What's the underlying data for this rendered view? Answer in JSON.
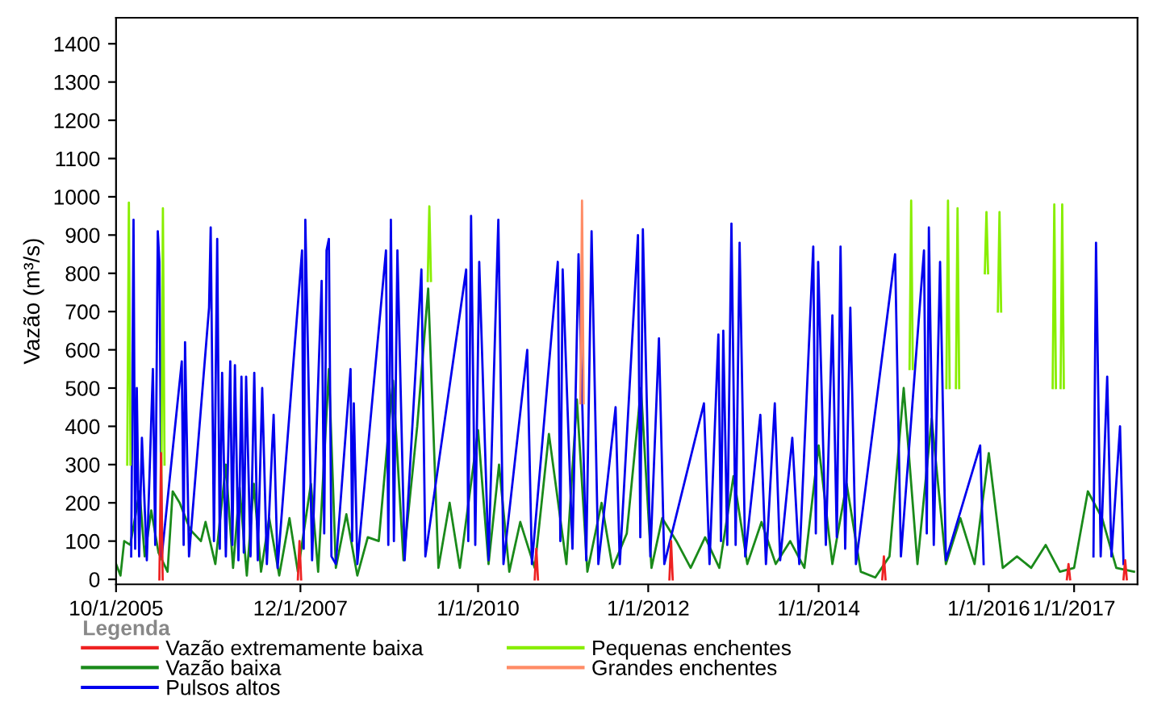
{
  "chart_data": {
    "type": "line",
    "ylabel": "Vazão (m³/s)",
    "legend_title": "Legenda",
    "legend": "bottom",
    "grid": false,
    "marker": "none",
    "line_style": "solid",
    "xlim": [
      "2005-10-01",
      "2017-09-30"
    ],
    "xticks": [
      {
        "value": "2005-10-01",
        "label": "10/1/2005"
      },
      {
        "value": "2007-12-01",
        "label": "12/1/2007"
      },
      {
        "value": "2010-01-01",
        "label": "1/1/2010"
      },
      {
        "value": "2012-01-01",
        "label": "1/1/2012"
      },
      {
        "value": "2014-01-01",
        "label": "1/1/2014"
      },
      {
        "value": "2016-01-01",
        "label": "1/1/2016"
      },
      {
        "value": "2017-01-01",
        "label": "1/1/2017"
      }
    ],
    "ylim": [
      -13,
      1468
    ],
    "yticks": [
      0,
      100,
      200,
      300,
      400,
      500,
      600,
      700,
      800,
      900,
      1000,
      1100,
      1200,
      1300,
      1400
    ],
    "series": [
      {
        "name": "Vazão extremamente baixa",
        "color": "#ee2222",
        "x": [
          "2006-04-05",
          "2006-04-12",
          "2006-04-19",
          null,
          "2007-11-20",
          "2007-11-27",
          "2007-12-04",
          null,
          "2010-09-01",
          "2010-09-08",
          "2010-09-15",
          null,
          "2012-04-01",
          "2012-04-08",
          "2012-04-15",
          null,
          "2014-10-01",
          "2014-10-08",
          "2014-10-15",
          null,
          "2016-12-01",
          "2016-12-08",
          "2016-12-15",
          null,
          "2017-08-01",
          "2017-08-08",
          "2017-08-15"
        ],
        "values": [
          0,
          330,
          0,
          null,
          0,
          100,
          0,
          null,
          0,
          80,
          0,
          null,
          0,
          100,
          0,
          null,
          0,
          60,
          0,
          null,
          0,
          40,
          0,
          null,
          0,
          50,
          0
        ]
      },
      {
        "name": "Vazão baixa",
        "color": "#1a8a1a",
        "x": [
          "2005-10-01",
          "2005-10-20",
          "2005-11-05",
          "2005-12-01",
          "2006-01-10",
          "2006-02-01",
          "2006-03-01",
          "2006-04-01",
          "2006-05-10",
          "2006-06-01",
          "2006-07-01",
          "2006-08-15",
          "2006-09-30",
          "2006-10-20",
          "2006-12-01",
          "2007-01-15",
          "2007-02-15",
          "2007-03-15",
          "2007-04-15",
          "2007-05-15",
          "2007-06-15",
          "2007-07-20",
          "2007-09-01",
          "2007-10-15",
          "2007-11-20",
          "2008-01-15",
          "2008-02-15",
          "2008-04-01",
          "2008-05-01",
          "2008-06-15",
          "2008-08-01",
          "2008-09-15",
          "2008-11-01",
          "2009-01-01",
          "2009-02-15",
          "2009-04-15",
          "2009-06-01",
          "2009-07-15",
          "2009-09-01",
          "2009-10-15",
          "2010-01-01",
          "2010-02-15",
          "2010-04-01",
          "2010-05-15",
          "2010-07-01",
          "2010-09-01",
          "2010-11-01",
          "2011-01-15",
          "2011-03-01",
          "2011-04-15",
          "2011-06-15",
          "2011-08-01",
          "2011-10-01",
          "2011-12-01",
          "2012-01-15",
          "2012-03-01",
          "2012-05-01",
          "2012-07-01",
          "2012-09-01",
          "2012-11-01",
          "2013-01-01",
          "2013-03-01",
          "2013-05-01",
          "2013-07-01",
          "2013-09-01",
          "2013-11-01",
          "2014-01-01",
          "2014-03-01",
          "2014-05-01",
          "2014-07-01",
          "2014-09-01",
          "2014-11-01",
          "2015-01-01",
          "2015-03-01",
          "2015-05-01",
          "2015-07-01",
          "2015-09-01",
          "2015-11-01",
          "2016-01-01",
          "2016-03-01",
          "2016-05-01",
          "2016-07-01",
          "2016-09-01",
          "2016-11-01",
          "2017-01-01",
          "2017-03-01",
          "2017-05-01",
          "2017-07-01",
          "2017-09-15"
        ],
        "values": [
          40,
          10,
          100,
          90,
          230,
          60,
          180,
          70,
          20,
          230,
          200,
          130,
          100,
          150,
          40,
          300,
          30,
          240,
          10,
          250,
          20,
          160,
          10,
          160,
          20,
          250,
          20,
          550,
          30,
          170,
          10,
          110,
          100,
          520,
          50,
          400,
          760,
          30,
          200,
          30,
          390,
          40,
          300,
          20,
          150,
          30,
          380,
          40,
          470,
          20,
          200,
          30,
          120,
          500,
          30,
          160,
          100,
          30,
          110,
          30,
          270,
          40,
          150,
          40,
          100,
          30,
          350,
          40,
          250,
          20,
          5,
          60,
          500,
          40,
          420,
          40,
          160,
          40,
          330,
          30,
          60,
          30,
          90,
          20,
          30,
          230,
          160,
          30,
          20
        ]
      },
      {
        "name": "Pulsos altos",
        "color": "#0000ee",
        "x": [
          "2005-12-05",
          "2005-12-15",
          "2005-12-22",
          "2005-12-29",
          "2006-01-08",
          "2006-01-20",
          "2006-02-10",
          "2006-03-08",
          "2006-03-18",
          "2006-03-29",
          "2006-04-05",
          "2006-04-15",
          "2006-07-10",
          "2006-07-18",
          "2006-07-24",
          "2006-08-10",
          "2006-11-04",
          "2006-11-11",
          "2006-11-25",
          "2006-12-09",
          "2006-12-20",
          "2006-12-30",
          "2007-01-15",
          "2007-02-03",
          "2007-02-12",
          "2007-02-23",
          "2007-03-10",
          "2007-03-23",
          "2007-04-02",
          "2007-04-12",
          "2007-05-01",
          "2007-05-17",
          "2007-06-01",
          "2007-06-20",
          "2007-07-10",
          "2007-08-08",
          "2007-08-25",
          "2007-12-08",
          "2007-12-15",
          "2007-12-22",
          "2008-01-20",
          "2008-03-01",
          "2008-03-12",
          "2008-03-22",
          "2008-04-01",
          "2008-04-12",
          "2008-05-01",
          "2008-07-03",
          "2008-07-10",
          "2008-07-17",
          "2008-08-01",
          "2008-12-02",
          "2008-12-12",
          "2008-12-23",
          "2009-01-05",
          "2009-01-20",
          "2009-02-20",
          "2009-05-03",
          "2009-05-20",
          "2009-11-11",
          "2009-11-20",
          "2009-12-02",
          "2009-12-20",
          "2010-01-06",
          "2010-02-15",
          "2010-03-29",
          "2010-04-20",
          "2010-07-31",
          "2010-08-20",
          "2010-12-09",
          "2010-12-20",
          "2010-12-30",
          "2011-02-10",
          "2011-03-08",
          "2011-04-10",
          "2011-05-03",
          "2011-06-01",
          "2011-08-14",
          "2011-09-01",
          "2011-11-18",
          "2011-11-28",
          "2011-12-09",
          "2012-01-10",
          "2012-02-16",
          "2012-03-10",
          "2012-08-27",
          "2012-09-20",
          "2012-10-28",
          "2012-11-08",
          "2012-11-18",
          "2012-12-05",
          "2012-12-23",
          "2013-01-10",
          "2013-01-27",
          "2013-02-20",
          "2013-04-26",
          "2013-05-20",
          "2013-06-27",
          "2013-07-20",
          "2013-09-10",
          "2013-10-10",
          "2013-12-09",
          "2013-12-20",
          "2013-12-30",
          "2014-02-01",
          "2014-03-01",
          "2014-03-20",
          "2014-04-05",
          "2014-04-25",
          "2014-05-17",
          "2014-06-10",
          "2014-11-25",
          "2014-12-20",
          "2015-03-29",
          "2015-04-10",
          "2015-04-19",
          "2015-05-10",
          "2015-06-06",
          "2015-07-01",
          "2015-11-25",
          "2015-12-10",
          null,
          "2017-03-25",
          "2017-04-05",
          "2017-04-25",
          "2017-05-23",
          "2017-06-10",
          "2017-07-17",
          "2017-08-01"
        ],
        "values": [
          60,
          940,
          80,
          500,
          60,
          370,
          50,
          550,
          90,
          910,
          830,
          60,
          570,
          90,
          620,
          60,
          710,
          920,
          100,
          890,
          80,
          540,
          60,
          570,
          90,
          560,
          50,
          530,
          70,
          530,
          60,
          540,
          50,
          500,
          40,
          430,
          30,
          860,
          80,
          940,
          50,
          780,
          120,
          860,
          890,
          60,
          40,
          550,
          100,
          460,
          40,
          860,
          90,
          940,
          100,
          860,
          50,
          810,
          60,
          810,
          100,
          950,
          90,
          830,
          50,
          940,
          40,
          600,
          40,
          830,
          100,
          810,
          80,
          850,
          50,
          910,
          40,
          450,
          40,
          900,
          110,
          915,
          60,
          630,
          40,
          460,
          40,
          640,
          100,
          650,
          90,
          930,
          90,
          880,
          60,
          430,
          40,
          460,
          50,
          370,
          40,
          870,
          120,
          830,
          90,
          690,
          110,
          870,
          80,
          710,
          40,
          850,
          60,
          860,
          120,
          920,
          90,
          830,
          50,
          350,
          40,
          null,
          60,
          880,
          60,
          530,
          60,
          400,
          40
        ]
      },
      {
        "name": "Pequenas enchentes",
        "color": "#88ee00",
        "x": [
          "2005-11-18",
          "2005-11-25",
          "2005-12-02",
          null,
          "2006-04-13",
          "2006-04-20",
          "2006-04-27",
          null,
          "2009-05-30",
          "2009-06-06",
          "2009-06-13",
          null,
          "2015-01-26",
          "2015-02-02",
          "2015-02-09",
          null,
          "2015-07-03",
          "2015-07-10",
          "2015-07-17",
          null,
          "2015-08-13",
          "2015-08-20",
          "2015-08-27",
          null,
          "2015-12-15",
          "2015-12-22",
          "2015-12-29",
          null,
          "2016-02-09",
          "2016-02-16",
          "2016-02-23",
          null,
          "2016-10-01",
          "2016-10-08",
          "2016-10-15",
          null,
          "2016-11-04",
          "2016-11-11",
          "2016-11-18"
        ],
        "values": [
          300,
          985,
          300,
          null,
          200,
          970,
          300,
          null,
          780,
          975,
          780,
          null,
          550,
          990,
          550,
          null,
          500,
          990,
          500,
          null,
          500,
          970,
          500,
          null,
          800,
          960,
          800,
          null,
          700,
          960,
          700,
          null,
          500,
          980,
          500,
          null,
          500,
          980,
          500
        ]
      },
      {
        "name": "Grandes enchentes",
        "color": "#ff8c66",
        "x": [
          "2011-03-16",
          "2011-03-23",
          "2011-03-30"
        ],
        "values": [
          460,
          990,
          460
        ]
      }
    ]
  }
}
